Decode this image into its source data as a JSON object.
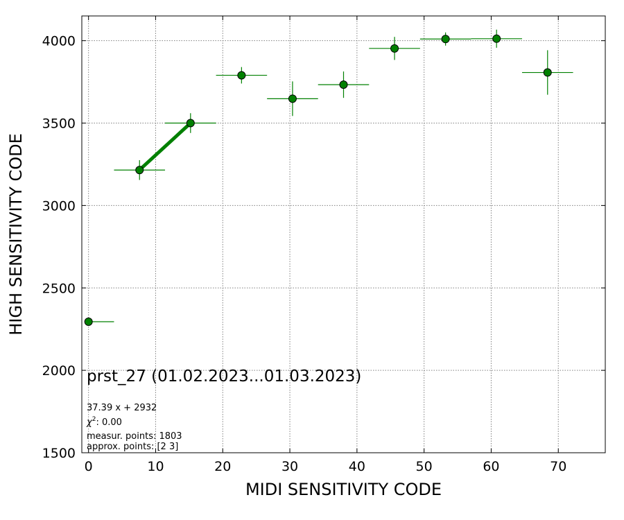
{
  "chart_data": {
    "type": "scatter",
    "title": "prst_27 (01.02.2023...01.03.2023)",
    "xlabel": "MIDI SENSITIVITY CODE",
    "ylabel": "HIGH SENSITIVITY CODE",
    "xlim": [
      -1,
      77
    ],
    "ylim": [
      1500,
      4150
    ],
    "x_ticks": [
      0,
      10,
      20,
      30,
      40,
      50,
      60,
      70
    ],
    "y_ticks": [
      1500,
      2000,
      2500,
      3000,
      3500,
      4000
    ],
    "grid": true,
    "points": [
      {
        "x": 0,
        "y": 2295,
        "xerr": [
          0,
          3.8
        ],
        "yerr": [
          0,
          0
        ]
      },
      {
        "x": 7.6,
        "y": 3215,
        "xerr": [
          3.8,
          3.8
        ],
        "yerr": [
          60,
          60
        ]
      },
      {
        "x": 15.2,
        "y": 3500,
        "xerr": [
          3.8,
          3.8
        ],
        "yerr": [
          60,
          60
        ]
      },
      {
        "x": 22.8,
        "y": 3790,
        "xerr": [
          3.8,
          3.8
        ],
        "yerr": [
          50,
          50
        ]
      },
      {
        "x": 30.4,
        "y": 3648,
        "xerr": [
          3.8,
          3.8
        ],
        "yerr": [
          105,
          105
        ]
      },
      {
        "x": 38.0,
        "y": 3733,
        "xerr": [
          3.8,
          3.8
        ],
        "yerr": [
          80,
          80
        ]
      },
      {
        "x": 45.6,
        "y": 3953,
        "xerr": [
          3.8,
          3.8
        ],
        "yerr": [
          70,
          70
        ]
      },
      {
        "x": 53.2,
        "y": 4010,
        "xerr": [
          3.8,
          3.8
        ],
        "yerr": [
          40,
          40
        ]
      },
      {
        "x": 60.8,
        "y": 4012,
        "xerr": [
          3.8,
          3.8
        ],
        "yerr": [
          55,
          55
        ]
      },
      {
        "x": 68.4,
        "y": 3807,
        "xerr": [
          3.8,
          3.8
        ],
        "yerr": [
          135,
          135
        ]
      }
    ],
    "fit_line": {
      "x": [
        7.6,
        15.2
      ],
      "y": [
        3216,
        3500
      ]
    },
    "annotations": [
      "37.39 x + 2932",
      "$\\chi^2: 0.00$",
      "measur. points: 1803",
      "approx. points: [2 3]"
    ],
    "colors": {
      "point_fill": "#008000",
      "error_bar": "#008000",
      "fit_line": "#008000",
      "grid": "#808080"
    }
  }
}
